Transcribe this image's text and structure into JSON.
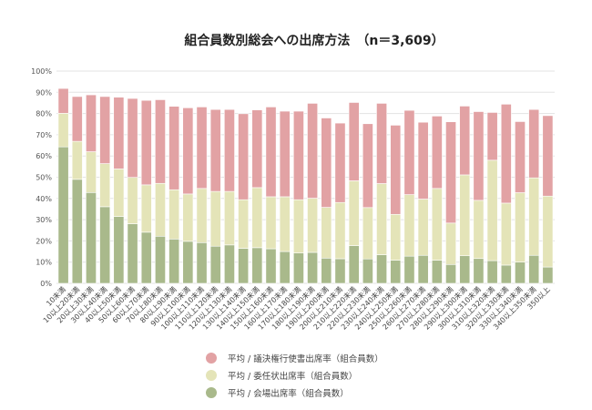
{
  "chart_data": {
    "type": "bar",
    "stacked": true,
    "title": "組合員数別総会への出席方法　（n＝3,609）",
    "xlabel": "",
    "ylabel": "",
    "ylim": [
      0,
      100
    ],
    "yticks": [
      "0%",
      "10%",
      "20%",
      "30%",
      "40%",
      "50%",
      "60%",
      "70%",
      "80%",
      "90%",
      "100%"
    ],
    "grid": true,
    "legend_position": "bottom",
    "categories": [
      "10未満",
      "10以上20未満",
      "20以上30未満",
      "30以上40未満",
      "40以上50未満",
      "50以上60未満",
      "60以上70未満",
      "70以上80未満",
      "80以上90未満",
      "90以上100未満",
      "100以上110未満",
      "110以上120未満",
      "120以上130未満",
      "130以上140未満",
      "140以上150未満",
      "150以上160未満",
      "160以上170未満",
      "170以上180未満",
      "180以上190未満",
      "190以上200未満",
      "200以上210未満",
      "210以上220未満",
      "220以上230未満",
      "230以上240未満",
      "240以上250未満",
      "250以上260未満",
      "260以上270未満",
      "270以上280未満",
      "280以上290未満",
      "290以上300未満",
      "300以上310未満",
      "310以上320未満",
      "320以上330未満",
      "330以上340未満",
      "340以上350未満",
      "350以上"
    ],
    "series": [
      {
        "name": "平均 / 会場出席率（組合員数）",
        "color": "#a9b98b",
        "values": [
          64.3,
          49.0,
          42.8,
          36.1,
          31.5,
          28.1,
          24.1,
          22.2,
          20.9,
          19.8,
          19.2,
          17.5,
          18.1,
          16.5,
          16.8,
          16.3,
          15.0,
          14.3,
          14.6,
          11.9,
          11.6,
          17.8,
          11.5,
          13.5,
          10.9,
          12.8,
          13.2,
          10.9,
          8.9,
          13.0,
          11.7,
          10.7,
          8.6,
          10.0,
          13.2,
          7.7
        ]
      },
      {
        "name": "平均 / 委任状出席率（組合員数）",
        "color": "#e4e4b8",
        "values": [
          15.8,
          17.9,
          19.2,
          20.3,
          22.4,
          21.8,
          22.3,
          24.9,
          23.2,
          22.3,
          25.5,
          25.8,
          25.2,
          22.9,
          28.3,
          24.5,
          25.8,
          25.1,
          25.5,
          23.9,
          26.5,
          30.5,
          24.2,
          33.5,
          21.6,
          29.0,
          26.5,
          33.8,
          19.5,
          38.1,
          27.4,
          47.3,
          29.2,
          32.7,
          36.5,
          33.4
        ]
      },
      {
        "name": "平均 / 議決権行使書出席率（組合員数）",
        "color": "#e2a2a4",
        "values": [
          11.7,
          21.1,
          26.8,
          31.6,
          33.8,
          37.2,
          39.8,
          39.4,
          39.3,
          40.6,
          38.4,
          38.6,
          38.6,
          40.5,
          36.6,
          42.3,
          40.3,
          41.7,
          44.7,
          42.1,
          37.4,
          36.9,
          39.5,
          37.8,
          42.0,
          39.7,
          36.2,
          34.1,
          47.7,
          32.4,
          41.8,
          22.5,
          46.6,
          33.5,
          32.2,
          37.9
        ]
      }
    ],
    "legend_order": [
      2,
      1,
      0
    ]
  }
}
